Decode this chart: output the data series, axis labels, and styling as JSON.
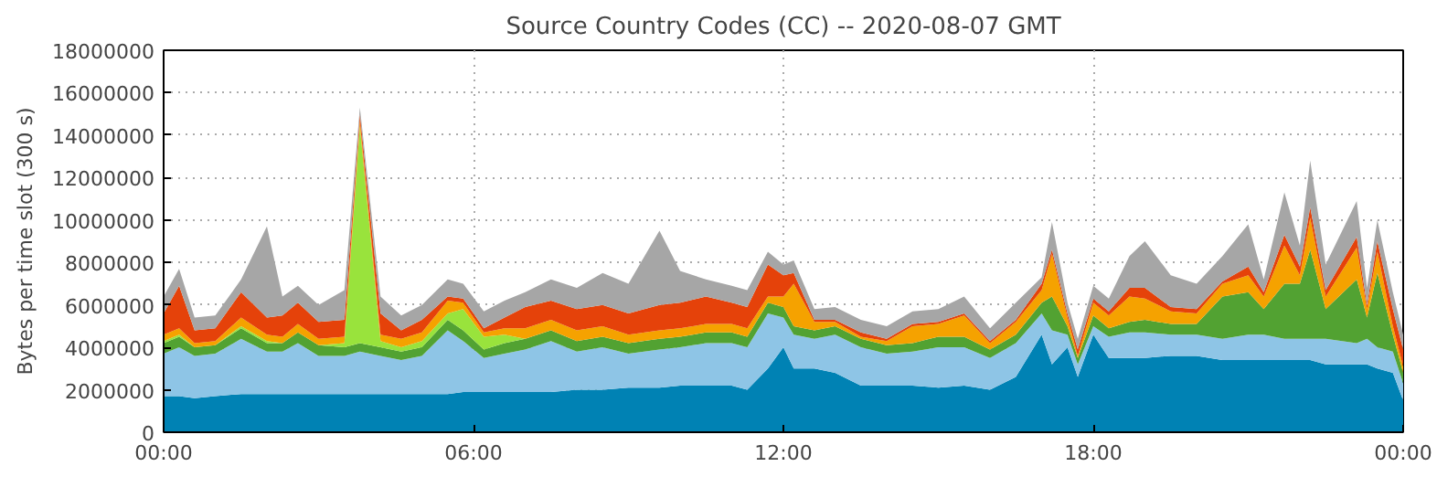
{
  "chart_data": {
    "type": "area",
    "stacked": true,
    "title": "Source Country Codes (CC) -- 2020-08-07 GMT",
    "ylabel": "Bytes per time slot (300 s)",
    "x": [
      0,
      0.3,
      0.6,
      1,
      1.5,
      2,
      2.3,
      2.6,
      3,
      3.5,
      3.8,
      4.2,
      4.6,
      5,
      5.5,
      5.8,
      6.2,
      6.6,
      7,
      7.5,
      8,
      8.5,
      9,
      9.6,
      10,
      10.5,
      11,
      11.3,
      11.7,
      12,
      12.2,
      12.6,
      13,
      13.5,
      14,
      14.5,
      15,
      15.5,
      16,
      16.5,
      17,
      17.2,
      17.5,
      17.7,
      18,
      18.3,
      18.7,
      19,
      19.5,
      20,
      20.5,
      21,
      21.3,
      21.7,
      22,
      22.2,
      22.5,
      23.1,
      23.3,
      23.5,
      23.8,
      24
    ],
    "xlim": [
      0,
      24
    ],
    "xticks": [
      {
        "value": 0,
        "label": "00:00"
      },
      {
        "value": 6,
        "label": "06:00"
      },
      {
        "value": 12,
        "label": "12:00"
      },
      {
        "value": 18,
        "label": "18:00"
      },
      {
        "value": 24,
        "label": "00:00"
      }
    ],
    "ylim": [
      0,
      18000000
    ],
    "yticks": [
      0,
      2000000,
      4000000,
      6000000,
      8000000,
      10000000,
      12000000,
      14000000,
      16000000,
      18000000
    ],
    "grid": true,
    "series": [
      {
        "color": "#0082b4",
        "values": [
          1700000.0,
          1700000.0,
          1600000.0,
          1700000.0,
          1800000.0,
          1800000.0,
          1800000.0,
          1800000.0,
          1800000.0,
          1800000.0,
          1800000.0,
          1800000.0,
          1800000.0,
          1800000.0,
          1800000.0,
          1900000.0,
          1900000.0,
          1900000.0,
          1900000.0,
          1900000.0,
          2000000.0,
          2000000.0,
          2100000.0,
          2100000.0,
          2200000.0,
          2200000.0,
          2200000.0,
          2000000.0,
          3000000.0,
          4000000.0,
          3000000.0,
          3000000.0,
          2800000.0,
          2200000.0,
          2200000.0,
          2200000.0,
          2100000.0,
          2200000.0,
          2000000.0,
          2600000.0,
          4600000.0,
          3200000.0,
          4000000.0,
          2600000.0,
          4600000.0,
          3500000.0,
          3500000.0,
          3500000.0,
          3600000.0,
          3600000.0,
          3400000.0,
          3400000.0,
          3400000.0,
          3400000.0,
          3400000.0,
          3400000.0,
          3200000.0,
          3200000.0,
          3200000.0,
          3000000.0,
          2800000.0,
          1500000.0
        ]
      },
      {
        "color": "#8ec5e6",
        "values": [
          2000000.0,
          2300000.0,
          2000000.0,
          2000000.0,
          2600000.0,
          2000000.0,
          2000000.0,
          2400000.0,
          1800000.0,
          1800000.0,
          2000000.0,
          1800000.0,
          1600000.0,
          1800000.0,
          3000000.0,
          2400000.0,
          1600000.0,
          1800000.0,
          2000000.0,
          2400000.0,
          1800000.0,
          2000000.0,
          1600000.0,
          1800000.0,
          1800000.0,
          2000000.0,
          2000000.0,
          2000000.0,
          2600000.0,
          1400000.0,
          1600000.0,
          1400000.0,
          1800000.0,
          1800000.0,
          1500000.0,
          1600000.0,
          1900000.0,
          1800000.0,
          1500000.0,
          1600000.0,
          1000000.0,
          1600000.0,
          600000.0,
          600000.0,
          400000.0,
          1000000.0,
          1200000.0,
          1200000.0,
          1000000.0,
          1000000.0,
          1000000.0,
          1200000.0,
          1200000.0,
          1000000.0,
          1000000.0,
          1000000.0,
          1200000.0,
          1000000.0,
          1200000.0,
          1000000.0,
          1000000.0,
          800000.0
        ]
      },
      {
        "color": "#52a232",
        "values": [
          500000.0,
          500000.0,
          400000.0,
          400000.0,
          500000.0,
          400000.0,
          400000.0,
          500000.0,
          500000.0,
          400000.0,
          400000.0,
          400000.0,
          400000.0,
          400000.0,
          500000.0,
          500000.0,
          400000.0,
          500000.0,
          500000.0,
          500000.0,
          500000.0,
          500000.0,
          500000.0,
          500000.0,
          500000.0,
          500000.0,
          500000.0,
          500000.0,
          500000.0,
          500000.0,
          400000.0,
          400000.0,
          400000.0,
          400000.0,
          400000.0,
          400000.0,
          500000.0,
          500000.0,
          400000.0,
          400000.0,
          500000.0,
          1600000.0,
          400000.0,
          300000.0,
          500000.0,
          400000.0,
          500000.0,
          600000.0,
          500000.0,
          500000.0,
          2000000.0,
          2000000.0,
          1200000.0,
          2600000.0,
          2600000.0,
          4200000.0,
          1400000.0,
          3000000.0,
          1000000.0,
          3500000.0,
          800000.0,
          500000.0
        ]
      },
      {
        "color": "#99e33c",
        "values": [
          100000.0,
          100000.0,
          0,
          0,
          100000.0,
          100000.0,
          0,
          0,
          0,
          200000.0,
          10200000.0,
          300000.0,
          200000.0,
          300000.0,
          300000.0,
          1000000.0,
          600000.0,
          400000.0,
          0,
          0,
          0,
          0,
          0,
          0,
          0,
          0,
          0,
          0,
          0,
          0,
          0,
          0,
          0,
          0,
          0,
          0,
          0,
          0,
          0,
          0,
          0,
          0,
          0,
          0,
          0,
          0,
          0,
          0,
          0,
          0,
          0,
          0,
          0,
          0,
          0,
          0,
          0,
          0,
          0,
          0,
          0,
          0
        ]
      },
      {
        "color": "#f5a200",
        "values": [
          300000.0,
          300000.0,
          200000.0,
          200000.0,
          400000.0,
          300000.0,
          300000.0,
          400000.0,
          300000.0,
          300000.0,
          300000.0,
          300000.0,
          400000.0,
          400000.0,
          600000.0,
          300000.0,
          200000.0,
          300000.0,
          500000.0,
          500000.0,
          500000.0,
          500000.0,
          400000.0,
          400000.0,
          400000.0,
          400000.0,
          400000.0,
          400000.0,
          300000.0,
          500000.0,
          2000000.0,
          400000.0,
          200000.0,
          100000.0,
          200000.0,
          800000.0,
          600000.0,
          1000000.0,
          300000.0,
          600000.0,
          600000.0,
          2000000.0,
          400000.0,
          100000.0,
          600000.0,
          600000.0,
          1200000.0,
          1000000.0,
          600000.0,
          500000.0,
          600000.0,
          800000.0,
          600000.0,
          1800000.0,
          400000.0,
          1500000.0,
          600000.0,
          1500000.0,
          400000.0,
          1000000.0,
          400000.0,
          300000.0
        ]
      },
      {
        "color": "#e5420a",
        "values": [
          1000000.0,
          2000000.0,
          600000.0,
          600000.0,
          1200000.0,
          800000.0,
          1000000.0,
          1000000.0,
          800000.0,
          800000.0,
          300000.0,
          1000000.0,
          400000.0,
          600000.0,
          200000.0,
          200000.0,
          200000.0,
          500000.0,
          1000000.0,
          900000.0,
          1000000.0,
          1000000.0,
          1000000.0,
          1200000.0,
          1200000.0,
          1300000.0,
          1000000.0,
          1000000.0,
          1500000.0,
          1000000.0,
          500000.0,
          100000.0,
          100000.0,
          200000.0,
          100000.0,
          100000.0,
          100000.0,
          100000.0,
          100000.0,
          100000.0,
          300000.0,
          200000.0,
          200000.0,
          300000.0,
          200000.0,
          200000.0,
          400000.0,
          500000.0,
          200000.0,
          200000.0,
          100000.0,
          400000.0,
          200000.0,
          500000.0,
          400000.0,
          500000.0,
          300000.0,
          500000.0,
          200000.0,
          500000.0,
          800000.0,
          800000.0
        ]
      },
      {
        "color": "#a6a6a6",
        "values": [
          800000.0,
          800000.0,
          600000.0,
          600000.0,
          600000.0,
          4300000.0,
          900000.0,
          800000.0,
          800000.0,
          1400000.0,
          300000.0,
          800000.0,
          700000.0,
          700000.0,
          800000.0,
          700000.0,
          800000.0,
          800000.0,
          700000.0,
          1000000.0,
          1000000.0,
          1500000.0,
          1400000.0,
          3500000.0,
          1500000.0,
          800000.0,
          800000.0,
          800000.0,
          600000.0,
          500000.0,
          600000.0,
          500000.0,
          600000.0,
          600000.0,
          600000.0,
          600000.0,
          600000.0,
          800000.0,
          600000.0,
          800000.0,
          300000.0,
          1300000.0,
          500000.0,
          500000.0,
          600000.0,
          600000.0,
          1500000.0,
          2200000.0,
          1500000.0,
          1200000.0,
          1200000.0,
          2000000.0,
          600000.0,
          2000000.0,
          1000000.0,
          2200000.0,
          1200000.0,
          1700000.0,
          800000.0,
          1000000.0,
          800000.0,
          700000.0
        ]
      }
    ]
  }
}
